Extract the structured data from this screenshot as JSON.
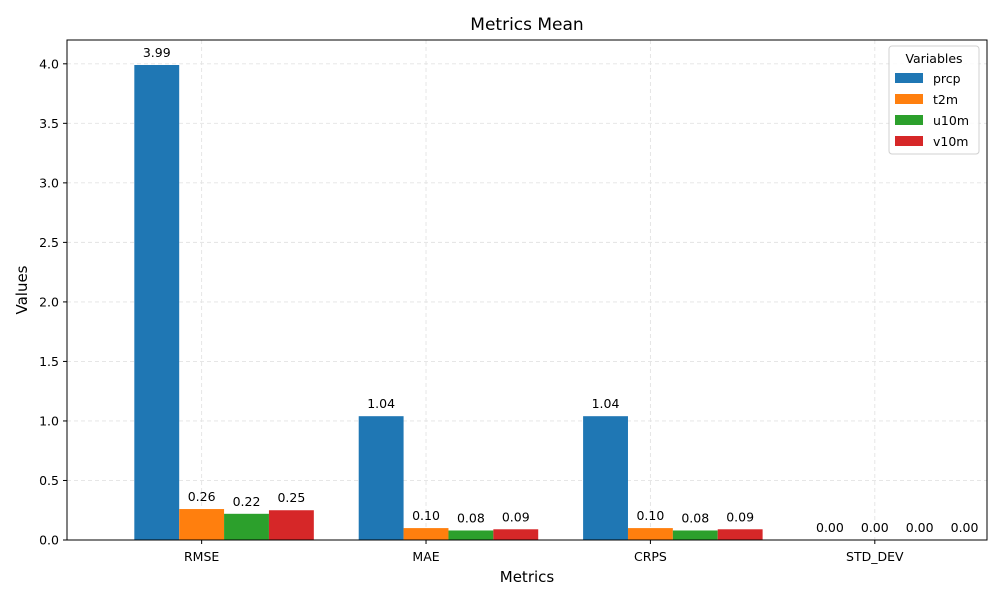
{
  "chart_data": {
    "type": "bar",
    "title": "Metrics Mean",
    "xlabel": "Metrics",
    "ylabel": "Values",
    "categories": [
      "RMSE",
      "MAE",
      "CRPS",
      "STD_DEV"
    ],
    "ylim": [
      0,
      4.2
    ],
    "yticks": [
      0.0,
      0.5,
      1.0,
      1.5,
      2.0,
      2.5,
      3.0,
      3.5,
      4.0
    ],
    "ytick_labels": [
      "0.0",
      "0.5",
      "1.0",
      "1.5",
      "2.0",
      "2.5",
      "3.0",
      "3.5",
      "4.0"
    ],
    "grid": true,
    "legend": {
      "title": "Variables",
      "placement": "top-right"
    },
    "series": [
      {
        "name": "prcp",
        "color": "#1f77b4",
        "values": [
          3.99,
          1.04,
          1.04,
          0.0
        ],
        "labels": [
          "3.99",
          "1.04",
          "1.04",
          "0.00"
        ]
      },
      {
        "name": "t2m",
        "color": "#ff7f0e",
        "values": [
          0.26,
          0.1,
          0.1,
          0.0
        ],
        "labels": [
          "0.26",
          "0.10",
          "0.10",
          "0.00"
        ]
      },
      {
        "name": "u10m",
        "color": "#2ca02c",
        "values": [
          0.22,
          0.08,
          0.08,
          0.0
        ],
        "labels": [
          "0.22",
          "0.08",
          "0.08",
          "0.00"
        ]
      },
      {
        "name": "v10m",
        "color": "#d62728",
        "values": [
          0.25,
          0.09,
          0.09,
          0.0
        ],
        "labels": [
          "0.25",
          "0.09",
          "0.09",
          "0.00"
        ]
      }
    ]
  }
}
